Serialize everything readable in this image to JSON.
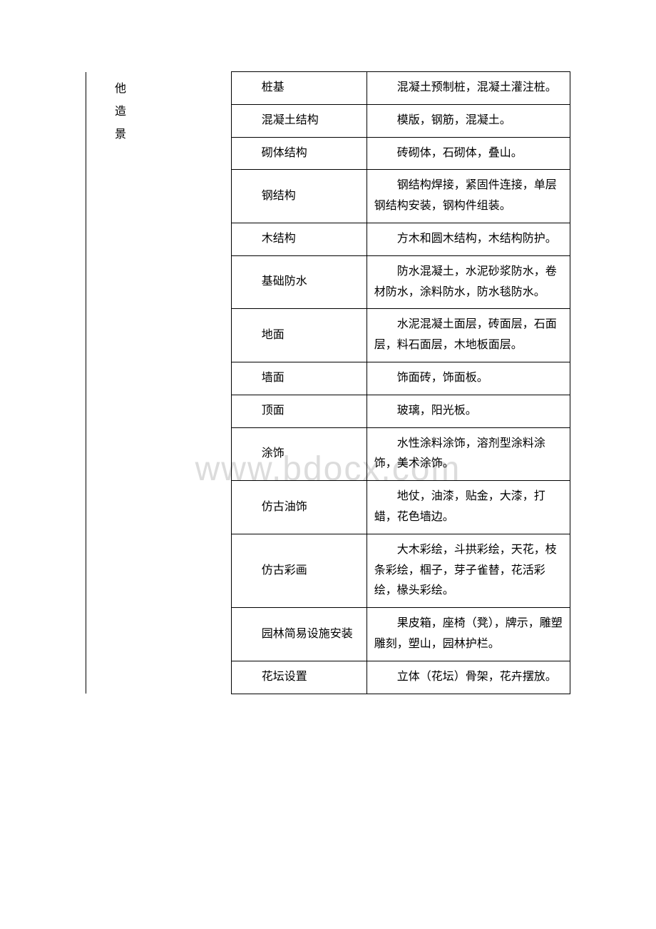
{
  "watermark": "www.bdocx.com",
  "category_chars": [
    "他",
    "造",
    "景"
  ],
  "rows": [
    {
      "name": "桩基",
      "desc": "混凝土预制桩，混凝土灌注桩。"
    },
    {
      "name": "混凝土结构",
      "desc": "模版，钢筋，混凝土。"
    },
    {
      "name": "砌体结构",
      "desc": "砖砌体，石砌体，叠山。"
    },
    {
      "name": "钢结构",
      "desc": "钢结构焊接，紧固件连接，单层钢结构安装，钢构件组装。"
    },
    {
      "name": "木结构",
      "desc": "方木和圆木结构，木结构防护。"
    },
    {
      "name": "基础防水",
      "desc": "防水混凝土，水泥砂浆防水，卷材防水，涂料防水，防水毯防水。"
    },
    {
      "name": "地面",
      "desc": "水泥混凝土面层，砖面层，石面层，料石面层，木地板面层。"
    },
    {
      "name": "墙面",
      "desc": "饰面砖，饰面板。"
    },
    {
      "name": "顶面",
      "desc": "玻璃，阳光板。"
    },
    {
      "name": "涂饰",
      "desc": "水性涂料涂饰，溶剂型涂料涂饰，美术涂饰。"
    },
    {
      "name": "仿古油饰",
      "desc": "地仗，油漆，贴金，大漆，打蜡，花色墙边。"
    },
    {
      "name": "仿古彩画",
      "desc": "大木彩绘，斗拱彩绘，天花，枝条彩绘，椢子，芽子雀替，花活彩绘，椽头彩绘。"
    },
    {
      "name": "园林简易设施安装",
      "desc": "果皮箱，座椅（凳），牌示，雕塑雕刻，塑山，园林护栏。"
    },
    {
      "name": "花坛设置",
      "desc": "立体（花坛）骨架，花卉摆放。"
    }
  ]
}
